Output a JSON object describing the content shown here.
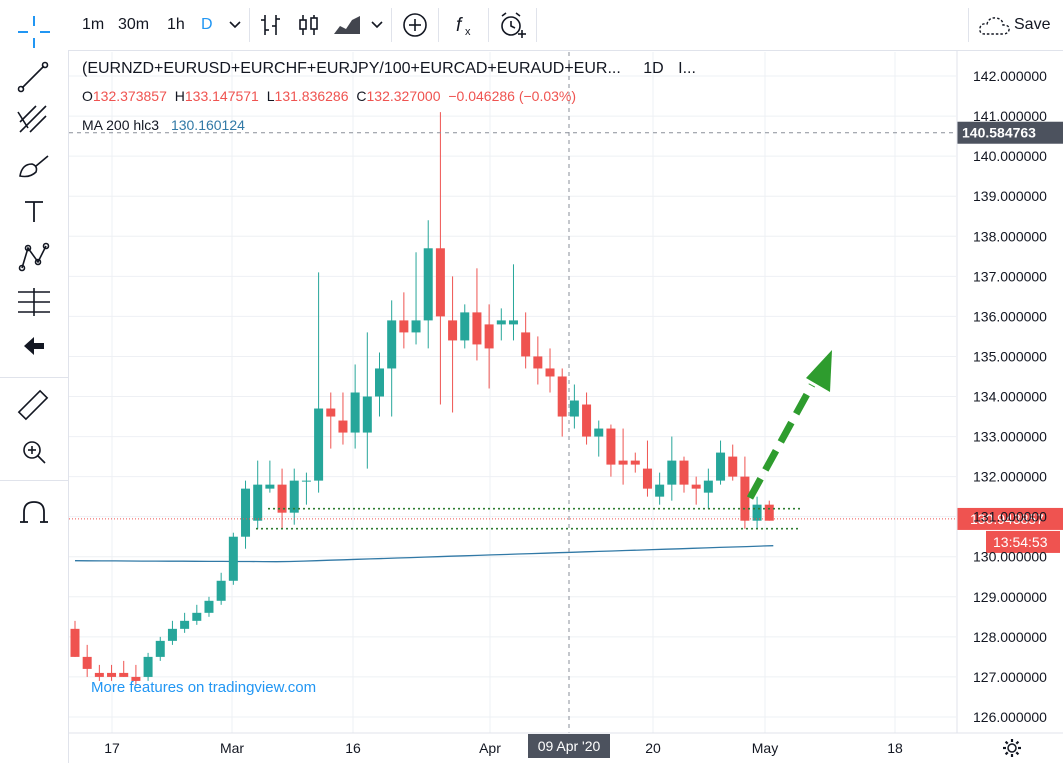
{
  "toolbar": {
    "intervals": [
      "1m",
      "30m",
      "1h",
      "D"
    ],
    "active_interval": "D",
    "save_label": "Save"
  },
  "sidebar": {
    "tools": [
      "crosshair-icon",
      "trend-line-icon",
      "pitchfork-icon",
      "brush-icon",
      "text-icon",
      "pattern-icon",
      "forecast-icon",
      "back-arrow-icon",
      "ruler-icon",
      "zoom-in-icon",
      "magnet-icon"
    ]
  },
  "legend": {
    "symbol": "(EURNZD+EURUSD+EURCHF+EURJPY/100+EURCAD+EURAUD+EUR...",
    "interval": "1D",
    "extra": "I...",
    "o_label": "O",
    "o_value": "132.373857",
    "h_label": "H",
    "h_value": "133.147571",
    "l_label": "L",
    "l_value": "131.836286",
    "c_label": "C",
    "c_value": "132.327000",
    "change": "−0.046286 (−0.03%)",
    "ma_label": "MA 200 hlc3",
    "ma_value": "130.160124"
  },
  "watermark": "More features on tradingview.com",
  "colors": {
    "up": "#26a69a",
    "down": "#ef5350",
    "ma": "#3179a6",
    "support": "#2e7d32",
    "arrow": "#2e9c2e",
    "accent": "#2196f3"
  },
  "chart_data": {
    "type": "candlestick",
    "title": "(EURNZD+EURUSD+EURCHF+EURJPY/100+EURCAD+EURAUD+EUR...",
    "interval": "1D",
    "ylim": [
      125.6,
      142.6
    ],
    "y_ticks": [
      "126.000000",
      "127.000000",
      "128.000000",
      "129.000000",
      "130.000000",
      "131.000000",
      "132.000000",
      "133.000000",
      "134.000000",
      "135.000000",
      "136.000000",
      "137.000000",
      "138.000000",
      "139.000000",
      "140.000000",
      "141.000000",
      "142.000000"
    ],
    "x_ticks": [
      "17",
      "Mar",
      "16",
      "Apr",
      "20",
      "May",
      "18"
    ],
    "crosshair_x_label": "09 Apr '20",
    "crosshair_y_label": "140.584763",
    "last_price_label": "130.943857",
    "countdown_label": "13:54:53",
    "grid": true,
    "candles": [
      {
        "o": 128.2,
        "h": 128.4,
        "l": 127.5,
        "c": 127.5
      },
      {
        "o": 127.5,
        "h": 127.8,
        "l": 127.0,
        "c": 127.2
      },
      {
        "o": 127.1,
        "h": 127.3,
        "l": 126.9,
        "c": 127.0
      },
      {
        "o": 127.1,
        "h": 127.3,
        "l": 126.9,
        "c": 127.0
      },
      {
        "o": 127.1,
        "h": 127.4,
        "l": 127.0,
        "c": 127.0
      },
      {
        "o": 127.0,
        "h": 127.3,
        "l": 126.8,
        "c": 126.9
      },
      {
        "o": 127.0,
        "h": 127.6,
        "l": 126.9,
        "c": 127.5
      },
      {
        "o": 127.5,
        "h": 128.0,
        "l": 127.4,
        "c": 127.9
      },
      {
        "o": 127.9,
        "h": 128.4,
        "l": 127.8,
        "c": 128.2
      },
      {
        "o": 128.2,
        "h": 128.6,
        "l": 128.1,
        "c": 128.4
      },
      {
        "o": 128.4,
        "h": 128.8,
        "l": 128.3,
        "c": 128.6
      },
      {
        "o": 128.6,
        "h": 129.0,
        "l": 128.5,
        "c": 128.9
      },
      {
        "o": 128.9,
        "h": 129.6,
        "l": 128.8,
        "c": 129.4
      },
      {
        "o": 129.4,
        "h": 130.6,
        "l": 129.3,
        "c": 130.5
      },
      {
        "o": 130.5,
        "h": 131.9,
        "l": 130.2,
        "c": 131.7
      },
      {
        "o": 130.9,
        "h": 132.4,
        "l": 130.7,
        "c": 131.8
      },
      {
        "o": 131.7,
        "h": 132.4,
        "l": 131.6,
        "c": 131.8
      },
      {
        "o": 131.8,
        "h": 132.2,
        "l": 130.7,
        "c": 131.1
      },
      {
        "o": 131.1,
        "h": 132.2,
        "l": 130.8,
        "c": 131.9
      },
      {
        "o": 131.9,
        "h": 132.1,
        "l": 131.3,
        "c": 131.9
      },
      {
        "o": 131.9,
        "h": 137.1,
        "l": 131.6,
        "c": 133.7
      },
      {
        "o": 133.7,
        "h": 134.1,
        "l": 132.7,
        "c": 133.5
      },
      {
        "o": 133.4,
        "h": 134.1,
        "l": 132.8,
        "c": 133.1
      },
      {
        "o": 133.1,
        "h": 134.8,
        "l": 132.7,
        "c": 134.1
      },
      {
        "o": 133.1,
        "h": 135.6,
        "l": 132.2,
        "c": 134.0
      },
      {
        "o": 134.0,
        "h": 135.1,
        "l": 133.5,
        "c": 134.7
      },
      {
        "o": 134.7,
        "h": 136.4,
        "l": 133.5,
        "c": 135.9
      },
      {
        "o": 135.9,
        "h": 136.6,
        "l": 135.2,
        "c": 135.6
      },
      {
        "o": 135.6,
        "h": 137.6,
        "l": 135.3,
        "c": 135.9
      },
      {
        "o": 135.9,
        "h": 138.4,
        "l": 135.2,
        "c": 137.7
      },
      {
        "o": 137.7,
        "h": 141.1,
        "l": 133.8,
        "c": 136.0
      },
      {
        "o": 135.9,
        "h": 137.0,
        "l": 133.6,
        "c": 135.4
      },
      {
        "o": 135.4,
        "h": 136.3,
        "l": 135.2,
        "c": 136.1
      },
      {
        "o": 136.1,
        "h": 137.2,
        "l": 134.9,
        "c": 135.3
      },
      {
        "o": 135.8,
        "h": 136.3,
        "l": 134.2,
        "c": 135.2
      },
      {
        "o": 135.8,
        "h": 136.2,
        "l": 135.4,
        "c": 135.9
      },
      {
        "o": 135.8,
        "h": 137.3,
        "l": 135.4,
        "c": 135.9
      },
      {
        "o": 135.6,
        "h": 136.1,
        "l": 134.7,
        "c": 135.0
      },
      {
        "o": 135.0,
        "h": 135.5,
        "l": 134.3,
        "c": 134.7
      },
      {
        "o": 134.7,
        "h": 135.2,
        "l": 134.1,
        "c": 134.5
      },
      {
        "o": 134.5,
        "h": 134.7,
        "l": 133.0,
        "c": 133.5
      },
      {
        "o": 133.5,
        "h": 134.3,
        "l": 133.2,
        "c": 133.9
      },
      {
        "o": 133.8,
        "h": 134.1,
        "l": 132.8,
        "c": 133.0
      },
      {
        "o": 133.0,
        "h": 133.4,
        "l": 132.5,
        "c": 133.2
      },
      {
        "o": 133.2,
        "h": 133.3,
        "l": 132.0,
        "c": 132.3
      },
      {
        "o": 132.4,
        "h": 133.2,
        "l": 131.8,
        "c": 132.3
      },
      {
        "o": 132.4,
        "h": 132.6,
        "l": 132.1,
        "c": 132.3
      },
      {
        "o": 132.2,
        "h": 132.9,
        "l": 131.5,
        "c": 131.7
      },
      {
        "o": 131.5,
        "h": 132.1,
        "l": 131.3,
        "c": 131.8
      },
      {
        "o": 131.8,
        "h": 133.0,
        "l": 131.4,
        "c": 132.4
      },
      {
        "o": 132.4,
        "h": 132.5,
        "l": 131.6,
        "c": 131.8
      },
      {
        "o": 131.8,
        "h": 132.0,
        "l": 131.3,
        "c": 131.7
      },
      {
        "o": 131.6,
        "h": 132.2,
        "l": 131.2,
        "c": 131.9
      },
      {
        "o": 131.9,
        "h": 132.9,
        "l": 131.8,
        "c": 132.6
      },
      {
        "o": 132.5,
        "h": 132.8,
        "l": 131.9,
        "c": 132.0
      },
      {
        "o": 132.0,
        "h": 132.5,
        "l": 130.7,
        "c": 130.9
      },
      {
        "o": 130.9,
        "h": 131.5,
        "l": 130.7,
        "c": 131.3
      },
      {
        "o": 131.3,
        "h": 131.4,
        "l": 130.9,
        "c": 130.9
      }
    ],
    "ma200": {
      "name": "MA 200 hlc3",
      "start": 129.9,
      "end": 130.3
    },
    "support_lines": [
      131.2,
      130.7
    ]
  }
}
